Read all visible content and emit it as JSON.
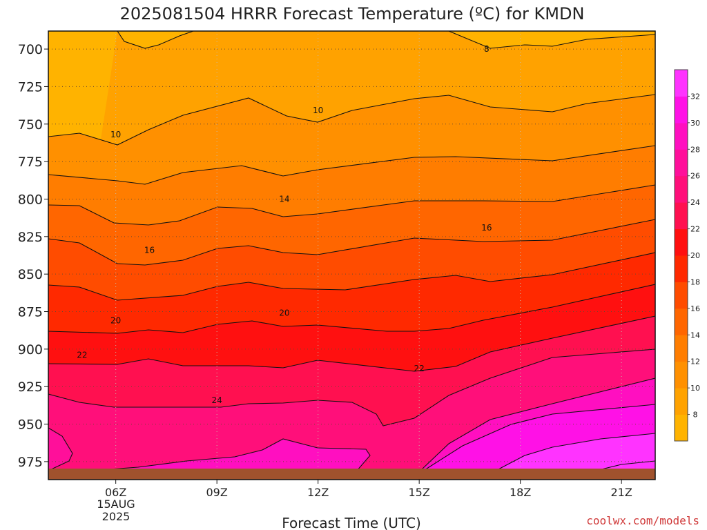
{
  "chart_data": {
    "type": "heatmap",
    "title": "2025081504 HRRR Forecast Temperature (ºC) for KMDN",
    "xlabel": "Forecast Time (UTC)",
    "ylabel": "",
    "x_tick_labels": [
      "06Z",
      "09Z",
      "12Z",
      "15Z",
      "18Z",
      "21Z"
    ],
    "x_date_labels": [
      "15AUG",
      "2025"
    ],
    "x_range_hours": [
      4,
      22
    ],
    "y_tick_labels": [
      "700",
      "725",
      "750",
      "775",
      "800",
      "825",
      "850",
      "875",
      "900",
      "925",
      "950",
      "975"
    ],
    "ylim": [
      987,
      688
    ],
    "grid": "dotted",
    "colorbar_levels": [
      8,
      10,
      12,
      14,
      16,
      18,
      20,
      22,
      24,
      26,
      28,
      30,
      32
    ],
    "colorbar_colors": [
      "#ffb300",
      "#ffa200",
      "#ff9000",
      "#ff7d00",
      "#ff6600",
      "#ff4c00",
      "#ff2900",
      "#ff1010",
      "#ff1050",
      "#ff0f7a",
      "#ff0f9a",
      "#ff0fc0",
      "#ff11e6",
      "#ff33ff"
    ],
    "contour_labels": [
      {
        "value": "8",
        "hour": 17,
        "pressure": 700
      },
      {
        "value": "10",
        "hour": 6,
        "pressure": 757
      },
      {
        "value": "10",
        "hour": 12,
        "pressure": 741
      },
      {
        "value": "14",
        "hour": 11,
        "pressure": 800
      },
      {
        "value": "16",
        "hour": 7,
        "pressure": 834
      },
      {
        "value": "16",
        "hour": 17,
        "pressure": 819
      },
      {
        "value": "20",
        "hour": 6,
        "pressure": 881
      },
      {
        "value": "20",
        "hour": 11,
        "pressure": 876
      },
      {
        "value": "22",
        "hour": 5,
        "pressure": 904
      },
      {
        "value": "22",
        "hour": 15,
        "pressure": 913
      },
      {
        "value": "24",
        "hour": 9,
        "pressure": 934
      }
    ],
    "surface_color": "#a0522d"
  },
  "credit": "coolwx.com/models"
}
